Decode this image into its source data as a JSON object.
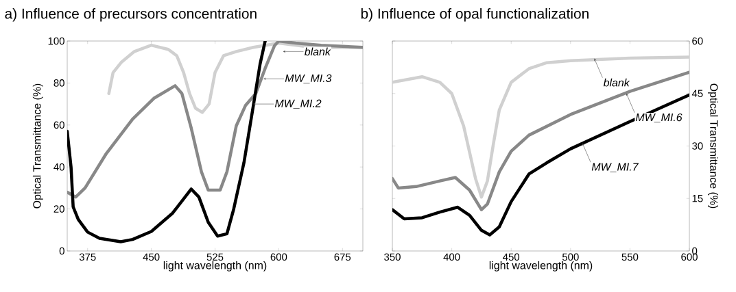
{
  "chart_data": [
    {
      "type": "line",
      "title": "a)  Influence of precursors concentration",
      "xlabel": "light wavelength (nm)",
      "ylabel": "Optical Transmittance (%)",
      "xlim": [
        351,
        699
      ],
      "xticks": [
        375,
        450,
        525,
        600,
        675
      ],
      "ylim": [
        0,
        100
      ],
      "yticks": [
        0,
        20,
        40,
        60,
        80,
        100
      ],
      "grid": false,
      "series": [
        {
          "color": "#d0d0d0",
          "x": [
            400,
            405,
            415,
            430,
            450,
            470,
            480,
            488,
            495,
            502,
            510,
            518,
            525,
            535,
            550,
            570,
            600,
            640,
            699
          ],
          "values": [
            75,
            85,
            90,
            95,
            98,
            96,
            93,
            85,
            75,
            68,
            66,
            70,
            85,
            93,
            95,
            97,
            99,
            97,
            97
          ]
        },
        {
          "color": "#888888",
          "x": [
            351,
            361,
            372,
            397,
            428,
            453,
            478,
            486,
            497,
            509,
            517,
            531,
            539,
            550,
            561,
            573,
            584,
            595,
            600,
            620,
            650,
            699
          ],
          "values": [
            28,
            25.7,
            30,
            46.4,
            62.8,
            72.7,
            78.7,
            75,
            58.5,
            37.7,
            29,
            29,
            37.7,
            59.6,
            69.4,
            75,
            87,
            97.8,
            100,
            99,
            98,
            97
          ]
        },
        {
          "color": "#000000",
          "x": [
            351,
            355.5,
            358,
            364,
            375,
            389,
            414,
            428,
            450,
            475,
            497,
            506,
            517,
            528,
            539,
            547,
            559,
            570,
            578,
            584
          ],
          "values": [
            57,
            40,
            21,
            15,
            9,
            6,
            4.4,
            5.5,
            9.3,
            18,
            29.5,
            25.7,
            13.7,
            7.1,
            8.2,
            20,
            42,
            69,
            89,
            100
          ]
        }
      ],
      "annotations": [
        {
          "text": "blank",
          "x": 605,
          "y": 95
        },
        {
          "text": "MW_MI.3",
          "x": 582,
          "y": 82
        },
        {
          "text": "MW_MI.2",
          "x": 570,
          "y": 70
        }
      ]
    },
    {
      "type": "line",
      "title": "b)  Influence of opal functionalization",
      "xlabel": "light wavelength (nm)",
      "ylabel": "Optical Transmittance (%)",
      "xlim": [
        350,
        600
      ],
      "xticks": [
        350,
        400,
        450,
        500,
        550,
        600
      ],
      "ylim": [
        0,
        60
      ],
      "yticks": [
        0,
        15,
        30,
        45,
        60
      ],
      "grid": false,
      "series": [
        {
          "color": "#d0d0d0",
          "x": [
            350,
            375,
            390,
            400,
            410,
            420,
            425,
            430,
            435,
            440,
            450,
            465,
            480,
            500,
            550,
            600
          ],
          "values": [
            48.2,
            49.8,
            48.2,
            45,
            35.7,
            20.7,
            15.4,
            20,
            30.5,
            40.3,
            48.2,
            52.1,
            53.8,
            54.4,
            55.1,
            55.4
          ]
        },
        {
          "color": "#888888",
          "x": [
            350,
            355,
            370,
            390,
            403,
            415,
            425,
            430,
            440,
            450,
            465,
            500,
            550,
            600
          ],
          "values": [
            20.7,
            18,
            18.4,
            20,
            21,
            17.4,
            11.8,
            13.4,
            22.6,
            28.5,
            33.1,
            39,
            45.6,
            51.1
          ]
        },
        {
          "color": "#000000",
          "x": [
            350,
            360,
            375,
            390,
            405,
            415,
            425,
            432,
            440,
            450,
            465,
            480,
            500,
            550,
            600
          ],
          "values": [
            11.8,
            9.2,
            9.5,
            11.1,
            12.5,
            10.2,
            5.9,
            4.6,
            6.9,
            14.1,
            22,
            25.2,
            29.2,
            37,
            44.6
          ]
        }
      ],
      "annotations": [
        {
          "text": "blank",
          "x": 520,
          "y": 55
        },
        {
          "text": "MW_MI.6",
          "x": 547,
          "y": 45
        },
        {
          "text": "MW_MI.7",
          "x": 510,
          "y": 30.8
        }
      ]
    }
  ]
}
